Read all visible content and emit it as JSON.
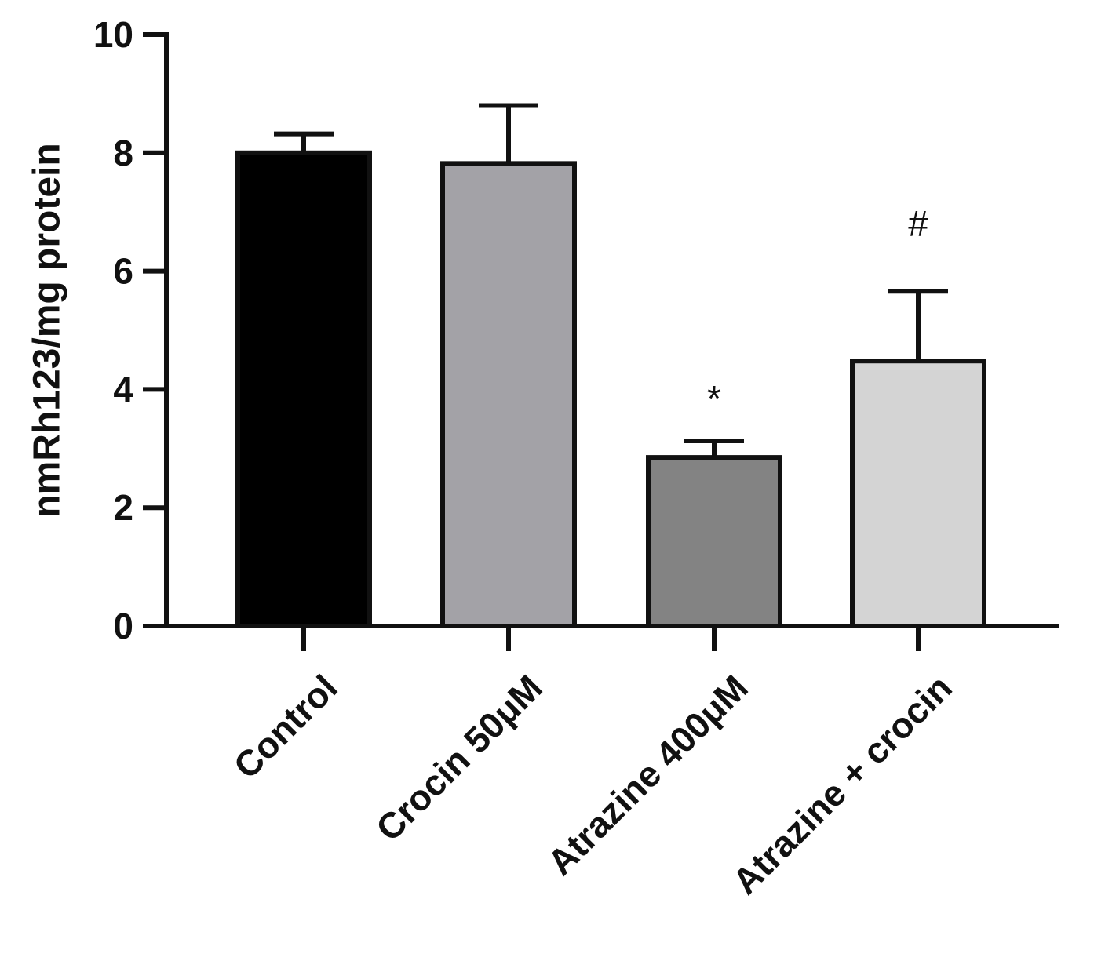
{
  "chart_data": {
    "type": "bar",
    "title": "",
    "xlabel": "",
    "ylabel": "nmRh123/mg protein",
    "ylim": [
      0,
      10
    ],
    "yticks": [
      0,
      2,
      4,
      6,
      8,
      10
    ],
    "ytick_labels": [
      "0",
      "2",
      "4",
      "6",
      "8",
      "10"
    ],
    "categories": [
      "Control",
      "Crocin 50μM",
      "Atrazine 400μM",
      "Atrazine + crocin"
    ],
    "values": [
      8.0,
      7.82,
      2.85,
      4.48
    ],
    "error_upper": [
      0.32,
      0.98,
      0.28,
      1.18
    ],
    "annotations": [
      "",
      "",
      "*",
      "#"
    ],
    "colors": [
      "#000000",
      "#a3a2a7",
      "#838383",
      "#d4d4d4"
    ],
    "edge_color": "#111111",
    "grid": false,
    "legend": "none"
  }
}
